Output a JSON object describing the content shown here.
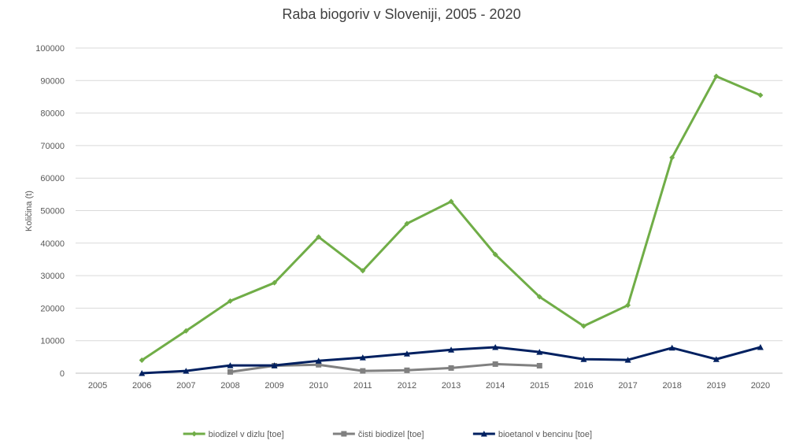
{
  "chart_data": {
    "type": "line",
    "title": "Raba biogoriv v Sloveniji, 2005 - 2020",
    "xlabel": "",
    "ylabel": "Količina (t)",
    "ylim": [
      0,
      100000
    ],
    "yticks": [
      "0",
      "10000",
      "20000",
      "30000",
      "40000",
      "50000",
      "60000",
      "70000",
      "80000",
      "90000",
      "100000"
    ],
    "categories": [
      "2005",
      "2006",
      "2007",
      "2008",
      "2009",
      "2010",
      "2011",
      "2012",
      "2013",
      "2014",
      "2015",
      "2016",
      "2017",
      "2018",
      "2019",
      "2020"
    ],
    "grid": true,
    "legend_position": "bottom",
    "series": [
      {
        "name": "biodizel v dizlu [toe]",
        "color": "#70ad47",
        "marker": "diamond",
        "values": [
          null,
          4000,
          13000,
          22200,
          27800,
          41900,
          31500,
          46000,
          52800,
          36500,
          23500,
          14500,
          20900,
          66300,
          91300,
          85500
        ]
      },
      {
        "name": "čisti biodizel [toe]",
        "color": "#808080",
        "marker": "square",
        "values": [
          null,
          null,
          null,
          400,
          2300,
          2600,
          700,
          900,
          1600,
          2800,
          2300,
          null,
          null,
          null,
          null,
          null
        ]
      },
      {
        "name": "bioetanol v bencinu [toe]",
        "color": "#002060",
        "marker": "triangle",
        "values": [
          null,
          0,
          700,
          2400,
          2400,
          3800,
          4800,
          6000,
          7200,
          8000,
          6500,
          4300,
          4100,
          7800,
          4300,
          8000
        ]
      }
    ]
  }
}
